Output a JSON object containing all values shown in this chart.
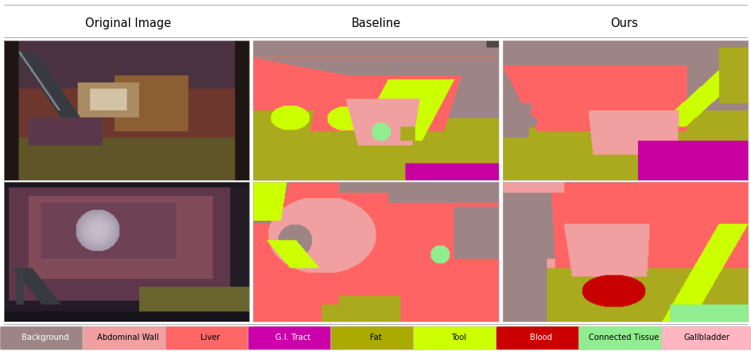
{
  "col_titles": [
    "Original Image",
    "Baseline",
    "Ours"
  ],
  "legend_items": [
    {
      "label": "Background",
      "color": "#9E8585"
    },
    {
      "label": "Abdominal Wall",
      "color": "#F0A0A0"
    },
    {
      "label": "Liver",
      "color": "#FF6666"
    },
    {
      "label": "G.I. Tract",
      "color": "#CC00AA"
    },
    {
      "label": "Fat",
      "color": "#AAAA00"
    },
    {
      "label": "Tool",
      "color": "#CCFF00"
    },
    {
      "label": "Blood",
      "color": "#CC0000"
    },
    {
      "label": "Connected Tissue",
      "color": "#90EE90"
    },
    {
      "label": "Gallbladder",
      "color": "#FFB6C1"
    }
  ],
  "background_color": "#ffffff",
  "fig_width": 9.45,
  "fig_height": 4.47,
  "seg_colors": {
    "bg": [
      158,
      133,
      133
    ],
    "liver": [
      255,
      100,
      100
    ],
    "fat": [
      170,
      170,
      30
    ],
    "tool": [
      204,
      255,
      0
    ],
    "abdom": [
      240,
      160,
      160
    ],
    "gi": [
      200,
      0,
      160
    ],
    "connected": [
      144,
      238,
      144
    ],
    "gallbladder": [
      255,
      182,
      193
    ],
    "blood": [
      200,
      0,
      0
    ],
    "dark_bg": [
      100,
      80,
      80
    ]
  }
}
